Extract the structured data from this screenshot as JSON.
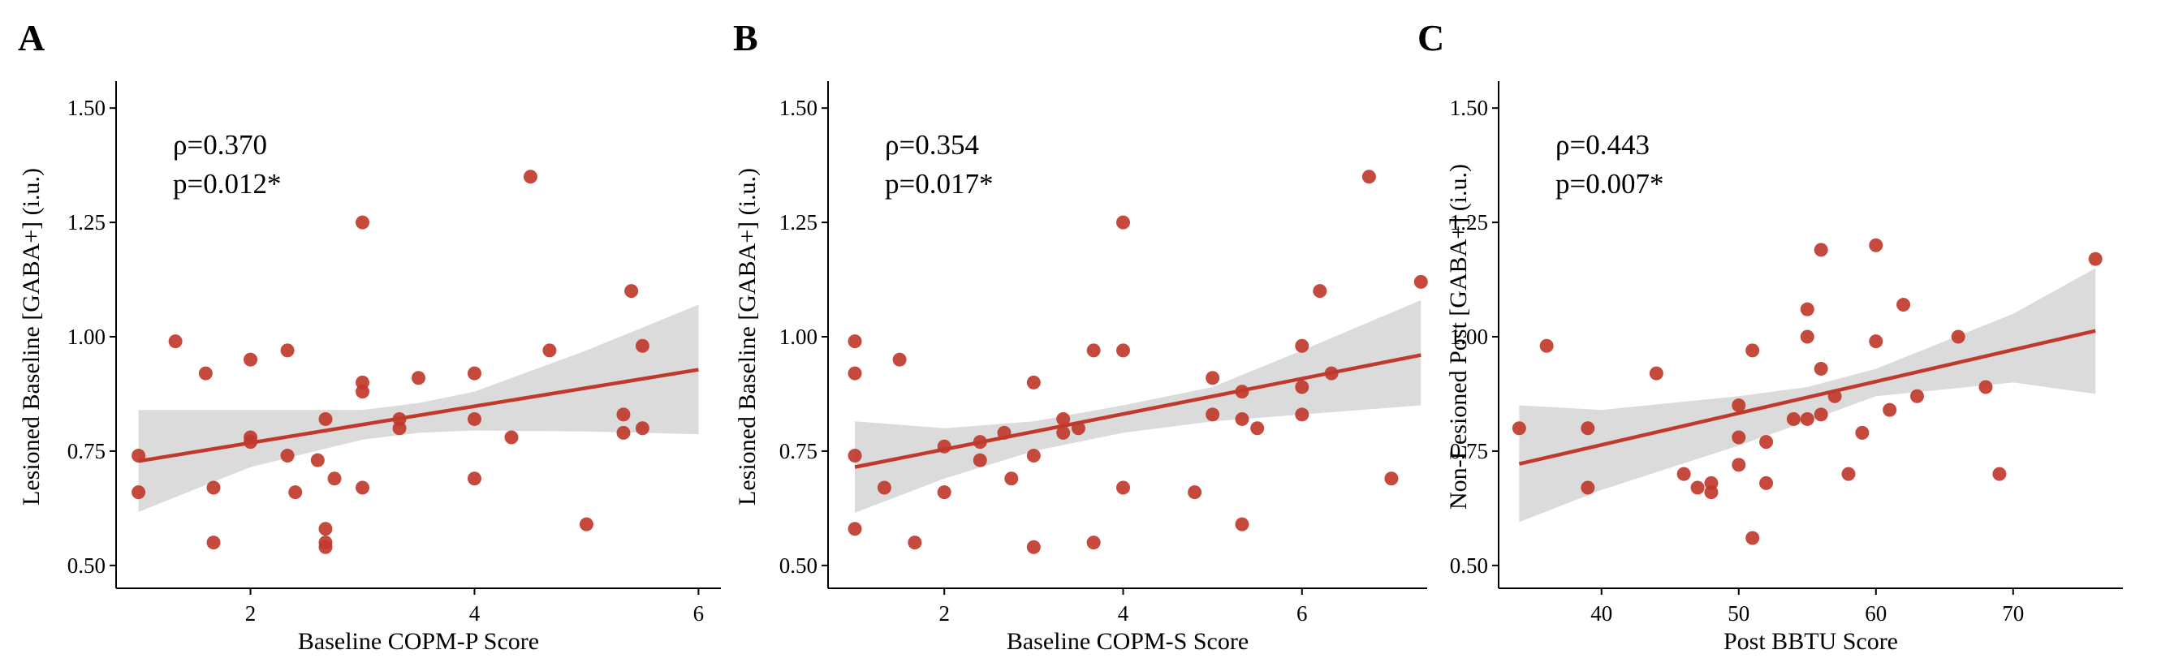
{
  "colors": {
    "point": "#c0392b",
    "line": "#c0392b",
    "band": "#d9d9d9",
    "axis": "#000000"
  },
  "chart_data": [
    {
      "type": "scatter",
      "panel": "A",
      "xlabel": "Baseline COPM-P Score",
      "ylabel": "Lesioned Baseline [GABA+] (i.u.)",
      "annotation": [
        "ρ=0.370",
        "p=0.012*"
      ],
      "xlim": [
        0.8,
        6.2
      ],
      "ylim": [
        0.45,
        1.55
      ],
      "xticks": [
        2,
        4,
        6
      ],
      "yticks": [
        0.5,
        0.75,
        1.0,
        1.25,
        1.5
      ],
      "ytick_labels": [
        "0.50",
        "0.75",
        "1.00",
        "1.25",
        "1.50"
      ],
      "points": [
        [
          1.0,
          0.66
        ],
        [
          1.0,
          0.74
        ],
        [
          1.33,
          0.99
        ],
        [
          1.6,
          0.92
        ],
        [
          1.67,
          0.67
        ],
        [
          1.67,
          0.55
        ],
        [
          2.0,
          0.95
        ],
        [
          2.0,
          0.78
        ],
        [
          2.0,
          0.77
        ],
        [
          2.33,
          0.97
        ],
        [
          2.33,
          0.74
        ],
        [
          2.4,
          0.66
        ],
        [
          2.6,
          0.73
        ],
        [
          2.67,
          0.82
        ],
        [
          2.67,
          0.58
        ],
        [
          2.67,
          0.55
        ],
        [
          2.67,
          0.54
        ],
        [
          2.75,
          0.69
        ],
        [
          3.0,
          1.25
        ],
        [
          3.0,
          0.9
        ],
        [
          3.0,
          0.88
        ],
        [
          3.0,
          0.67
        ],
        [
          3.33,
          0.82
        ],
        [
          3.33,
          0.8
        ],
        [
          3.5,
          0.91
        ],
        [
          4.0,
          0.92
        ],
        [
          4.0,
          0.82
        ],
        [
          4.0,
          0.69
        ],
        [
          4.33,
          0.78
        ],
        [
          4.5,
          1.35
        ],
        [
          4.67,
          0.97
        ],
        [
          5.0,
          0.59
        ],
        [
          5.33,
          0.83
        ],
        [
          5.33,
          0.79
        ],
        [
          5.4,
          1.1
        ],
        [
          5.5,
          0.98
        ],
        [
          5.5,
          0.8
        ]
      ],
      "fit": {
        "x": [
          1.0,
          6.0
        ],
        "y": [
          0.728,
          0.928
        ]
      },
      "ci": {
        "x": [
          1.0,
          2.0,
          3.0,
          3.5,
          4.0,
          5.0,
          6.0
        ],
        "lower": [
          0.617,
          0.715,
          0.775,
          0.79,
          0.795,
          0.793,
          0.787
        ],
        "upper": [
          0.84,
          0.84,
          0.84,
          0.855,
          0.88,
          0.97,
          1.07
        ]
      }
    },
    {
      "type": "scatter",
      "panel": "B",
      "xlabel": "Baseline COPM-S Score",
      "ylabel": "Lesioned Baseline [GABA+] (i.u.)",
      "annotation": [
        "ρ=0.354",
        "p=0.017*"
      ],
      "xlim": [
        0.7,
        7.4
      ],
      "ylim": [
        0.45,
        1.55
      ],
      "xticks": [
        2,
        4,
        6
      ],
      "yticks": [
        0.5,
        0.75,
        1.0,
        1.25,
        1.5
      ],
      "ytick_labels": [
        "0.50",
        "0.75",
        "1.00",
        "1.25",
        "1.50"
      ],
      "points": [
        [
          1.0,
          0.99
        ],
        [
          1.0,
          0.92
        ],
        [
          1.0,
          0.74
        ],
        [
          1.0,
          0.58
        ],
        [
          1.33,
          0.67
        ],
        [
          1.5,
          0.95
        ],
        [
          1.67,
          0.55
        ],
        [
          2.0,
          0.76
        ],
        [
          2.0,
          0.66
        ],
        [
          2.4,
          0.77
        ],
        [
          2.4,
          0.73
        ],
        [
          2.67,
          0.79
        ],
        [
          2.75,
          0.69
        ],
        [
          3.0,
          0.9
        ],
        [
          3.0,
          0.74
        ],
        [
          3.0,
          0.54
        ],
        [
          3.33,
          0.82
        ],
        [
          3.33,
          0.79
        ],
        [
          3.5,
          0.8
        ],
        [
          3.67,
          0.97
        ],
        [
          3.67,
          0.55
        ],
        [
          4.0,
          1.25
        ],
        [
          4.0,
          0.97
        ],
        [
          4.0,
          0.67
        ],
        [
          4.8,
          0.66
        ],
        [
          5.0,
          0.91
        ],
        [
          5.0,
          0.83
        ],
        [
          5.33,
          0.88
        ],
        [
          5.33,
          0.82
        ],
        [
          5.33,
          0.59
        ],
        [
          5.5,
          0.8
        ],
        [
          6.0,
          0.98
        ],
        [
          6.0,
          0.89
        ],
        [
          6.0,
          0.83
        ],
        [
          6.2,
          1.1
        ],
        [
          6.33,
          0.92
        ],
        [
          6.75,
          1.35
        ],
        [
          7.0,
          0.69
        ],
        [
          7.33,
          1.12
        ]
      ],
      "fit": {
        "x": [
          1.0,
          7.33
        ],
        "y": [
          0.715,
          0.96
        ]
      },
      "ci": {
        "x": [
          1.0,
          2.0,
          3.0,
          4.0,
          5.0,
          6.0,
          7.33
        ],
        "lower": [
          0.615,
          0.69,
          0.75,
          0.79,
          0.815,
          0.83,
          0.85
        ],
        "upper": [
          0.815,
          0.8,
          0.815,
          0.85,
          0.89,
          0.97,
          1.08
        ]
      }
    },
    {
      "type": "scatter",
      "panel": "C",
      "xlabel": "Post BBTU Score",
      "ylabel": "Non-Lesioned Post [GABA+] (i.u.)",
      "annotation": [
        "ρ=0.443",
        "p=0.007*"
      ],
      "xlim": [
        32.5,
        78
      ],
      "ylim": [
        0.45,
        1.55
      ],
      "xticks": [
        40,
        50,
        60,
        70
      ],
      "yticks": [
        0.5,
        0.75,
        1.0,
        1.25,
        1.5
      ],
      "ytick_labels": [
        "0.50",
        "0.75",
        "1.00",
        "1.25",
        "1.50"
      ],
      "points": [
        [
          34,
          0.8
        ],
        [
          36,
          0.98
        ],
        [
          39,
          0.8
        ],
        [
          39,
          0.67
        ],
        [
          44,
          0.92
        ],
        [
          46,
          0.7
        ],
        [
          47,
          0.67
        ],
        [
          48,
          0.68
        ],
        [
          48,
          0.66
        ],
        [
          50,
          0.85
        ],
        [
          50,
          0.78
        ],
        [
          50,
          0.72
        ],
        [
          51,
          0.97
        ],
        [
          51,
          0.56
        ],
        [
          52,
          0.77
        ],
        [
          52,
          0.68
        ],
        [
          54,
          0.82
        ],
        [
          55,
          1.06
        ],
        [
          55,
          1.0
        ],
        [
          55,
          0.82
        ],
        [
          56,
          1.19
        ],
        [
          56,
          0.93
        ],
        [
          56,
          0.83
        ],
        [
          57,
          0.87
        ],
        [
          58,
          0.7
        ],
        [
          59,
          0.79
        ],
        [
          60,
          1.2
        ],
        [
          60,
          0.99
        ],
        [
          61,
          0.84
        ],
        [
          62,
          1.07
        ],
        [
          63,
          0.87
        ],
        [
          66,
          1.0
        ],
        [
          68,
          0.89
        ],
        [
          69,
          0.7
        ],
        [
          76,
          1.17
        ]
      ],
      "fit": {
        "x": [
          34,
          76
        ],
        "y": [
          0.722,
          1.013
        ]
      },
      "ci": {
        "x": [
          34,
          40,
          50,
          55,
          60,
          70,
          76
        ],
        "lower": [
          0.595,
          0.665,
          0.762,
          0.815,
          0.87,
          0.9,
          0.875
        ],
        "upper": [
          0.85,
          0.84,
          0.87,
          0.89,
          0.93,
          1.05,
          1.15
        ]
      }
    }
  ]
}
